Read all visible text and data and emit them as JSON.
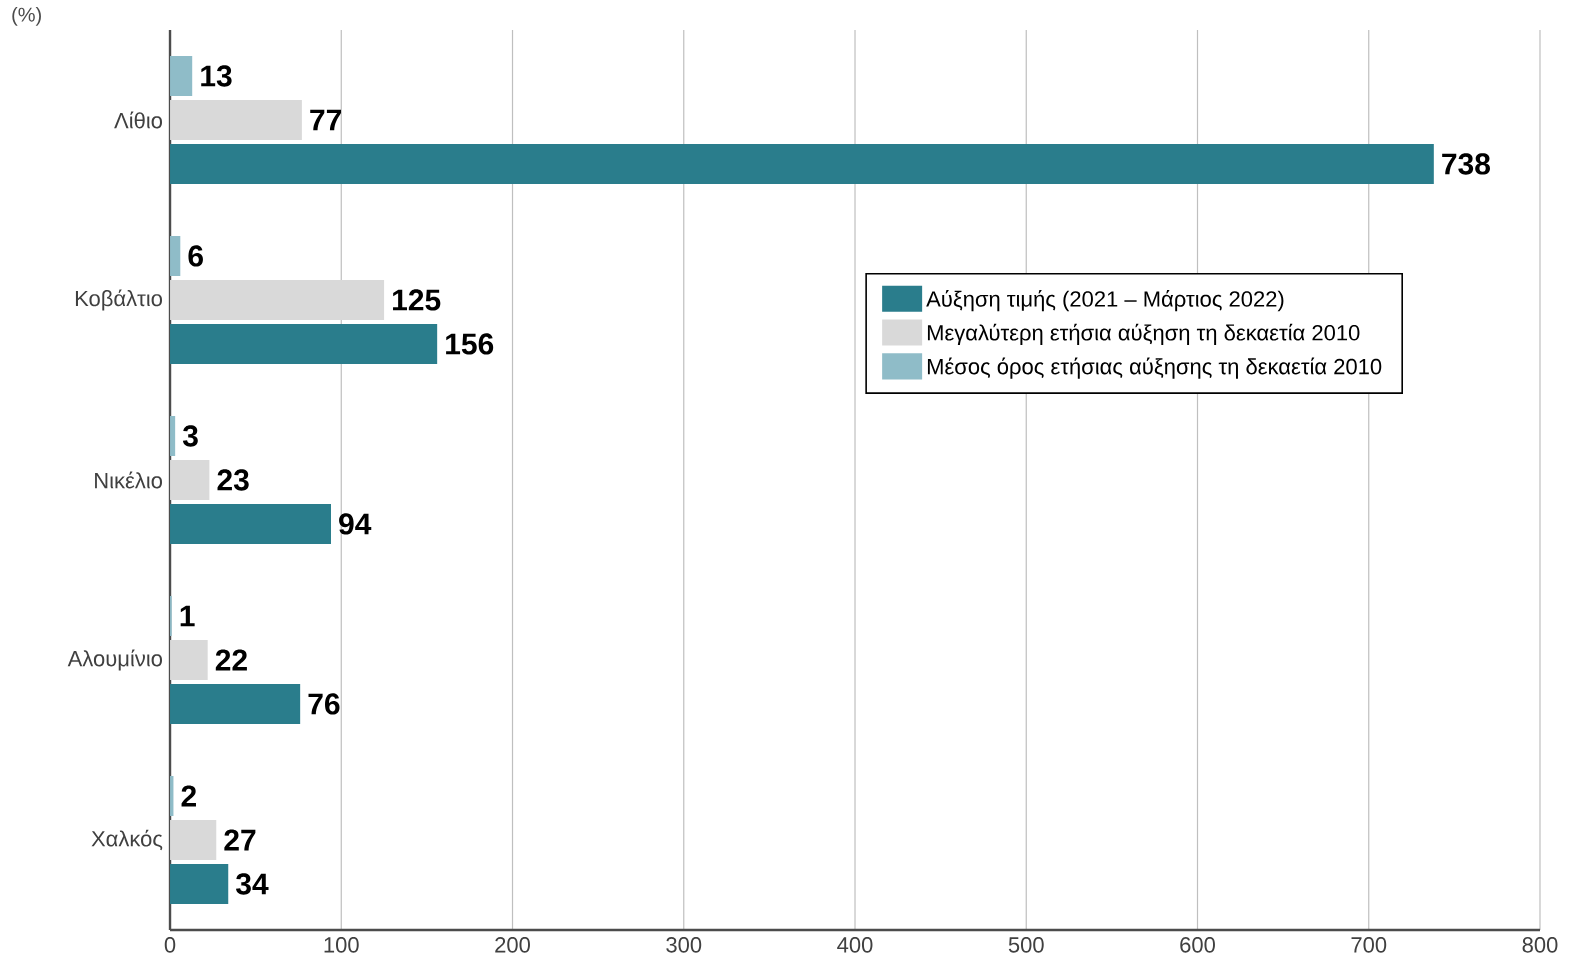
{
  "chart_data": {
    "type": "bar",
    "orientation": "horizontal",
    "categories": [
      "Λίθιο",
      "Κοβάλτιο",
      "Νικέλιο",
      "Αλουμίνιο",
      "Χαλκός"
    ],
    "series": [
      {
        "name": "Αύξηση τιμής (2021 – Μάρτιος 2022)",
        "color": "#2a7d8c",
        "values": [
          738,
          156,
          94,
          76,
          34
        ]
      },
      {
        "name": "Μεγαλύτερη ετήσια αύξηση τη δεκαετία 2010",
        "color": "#d9d9d9",
        "values": [
          77,
          125,
          23,
          22,
          27
        ]
      },
      {
        "name": "Μέσος όρος ετήσιας αύξησης τη δεκαετία 2010",
        "color": "#8fbcc8",
        "values": [
          13,
          6,
          3,
          1,
          2
        ]
      }
    ],
    "xlim": [
      0,
      800
    ],
    "xticks": [
      0,
      100,
      200,
      300,
      400,
      500,
      600,
      700,
      800
    ],
    "grid": "x",
    "legend": "right",
    "data_labels": true,
    "annotations": [
      "(%)"
    ]
  }
}
